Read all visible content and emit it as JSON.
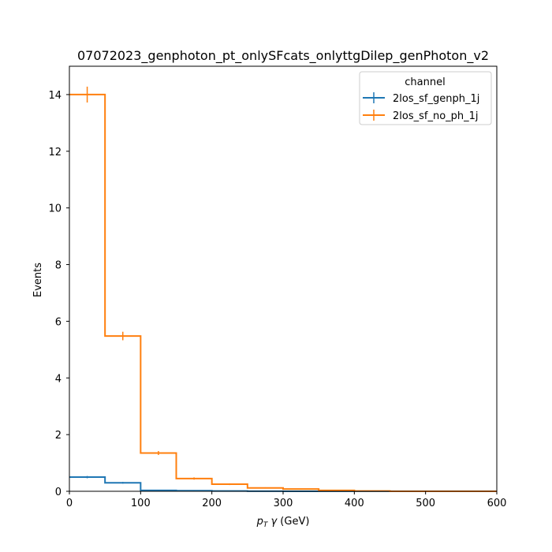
{
  "chart_data": {
    "type": "step",
    "title": "07072023_genphoton_pt_onlySFcats_onlyttgDilep_genPhoton_v2",
    "xlabel": {
      "main": "p",
      "sub": "T",
      "mid": " γ",
      "tail": " (GeV)"
    },
    "ylabel": "Events",
    "xlim": [
      0,
      600
    ],
    "ylim": [
      0,
      15
    ],
    "xticks": [
      0,
      100,
      200,
      300,
      400,
      500,
      600
    ],
    "yticks": [
      0,
      2,
      4,
      6,
      8,
      10,
      12,
      14
    ],
    "bin_edges": [
      0,
      50,
      100,
      150,
      200,
      250,
      300,
      350,
      400,
      450,
      500,
      550,
      600
    ],
    "legend": {
      "title": "channel",
      "position": "top-right"
    },
    "series": [
      {
        "name": "2los_sf_genph_1j",
        "color": "#1f77b4",
        "values": [
          0.5,
          0.3,
          0.03,
          0.02,
          0.01,
          0.005,
          0.0,
          0.0,
          0.0,
          0.0,
          0.0,
          0.0
        ],
        "errors": [
          0.04,
          0.03,
          0.01,
          0.01,
          0.005,
          0.003,
          0.0,
          0.0,
          0.0,
          0.0,
          0.0,
          0.0
        ]
      },
      {
        "name": "2los_sf_no_ph_1j",
        "color": "#ff7f0e",
        "values": [
          14.0,
          5.48,
          1.35,
          0.45,
          0.25,
          0.12,
          0.08,
          0.03,
          0.01,
          0.0,
          0.0,
          0.0
        ],
        "errors": [
          0.28,
          0.15,
          0.07,
          0.04,
          0.03,
          0.02,
          0.015,
          0.01,
          0.005,
          0.0,
          0.0,
          0.0
        ]
      }
    ]
  }
}
